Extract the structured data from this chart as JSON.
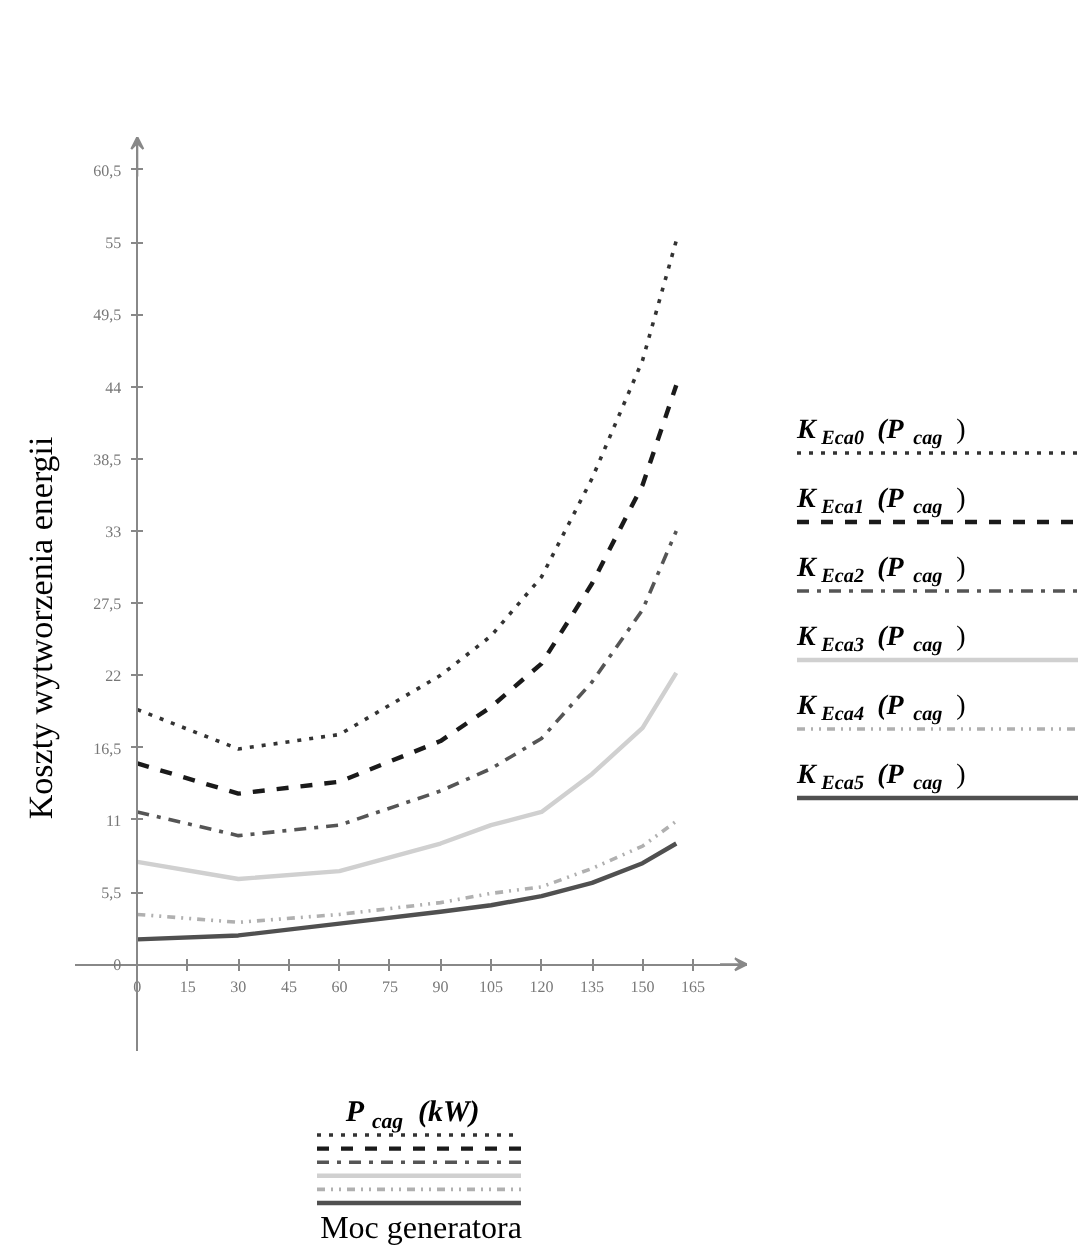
{
  "chart_data": {
    "type": "line",
    "ylabel": "Koszty wytworzenia energii",
    "xlabel": "P$_{cag}$ (kW)",
    "annotations": [
      "Moc generatora"
    ],
    "xlim": [
      -18.5,
      181
    ],
    "ylim": [
      -6.6,
      63
    ],
    "xticks": [
      0,
      15,
      30,
      45,
      60,
      75,
      90,
      105,
      120,
      135,
      150,
      165
    ],
    "yticks": [
      0,
      {
        "value": 5.5,
        "label": "5,5"
      },
      11,
      {
        "value": 16.5,
        "label": "16,5"
      },
      22,
      {
        "value": 27.5,
        "label": "27,5"
      },
      33,
      {
        "value": 38.5,
        "label": "38,5"
      },
      44,
      {
        "value": 49.5,
        "label": "49,5"
      },
      55,
      {
        "value": 60.5,
        "label": "60,5"
      }
    ],
    "x": [
      0,
      30,
      60,
      90,
      105,
      120,
      135,
      150,
      160
    ],
    "grid": false,
    "legend": "right",
    "marker": "none",
    "series": [
      {
        "name": "K$_{Eca0}$(P$_{cag}$)",
        "color": "#333333",
        "line_style": "dotted",
        "values": [
          19.4,
          16.4,
          17.5,
          22,
          25,
          29.5,
          37,
          46,
          55.1
        ]
      },
      {
        "name": "K$_{Eca1}$(P$_{cag}$)",
        "color": "#1a1a1a",
        "line_style": "dashed",
        "values": [
          15.3,
          13.0,
          13.9,
          17.0,
          19.6,
          22.9,
          29,
          36.5,
          44.1
        ]
      },
      {
        "name": "K$_{Eca2}$(P$_{cag}$)",
        "color": "#555555",
        "line_style": "dashdot",
        "values": [
          11.6,
          9.8,
          10.6,
          13.2,
          14.9,
          17.2,
          21.5,
          27,
          33.0
        ]
      },
      {
        "name": "K$_{Eca3}$(P$_{cag}$)",
        "color": "#d0d0d0",
        "line_style": "solid",
        "values": [
          7.8,
          6.5,
          7.1,
          9.2,
          10.6,
          11.6,
          14.5,
          18,
          22.2
        ]
      },
      {
        "name": "K$_{Eca4}$(P$_{cag}$)",
        "color": "#b0b0b0",
        "line_style": "dashdotdot",
        "values": [
          3.8,
          3.2,
          3.8,
          4.7,
          5.4,
          5.9,
          7.3,
          9,
          10.9
        ]
      },
      {
        "name": "K$_{Eca5}$(P$_{cag}$)",
        "color": "#505050",
        "line_style": "solid",
        "values": [
          1.9,
          2.2,
          3.1,
          4.0,
          4.5,
          5.2,
          6.2,
          7.7,
          9.2
        ]
      }
    ]
  }
}
